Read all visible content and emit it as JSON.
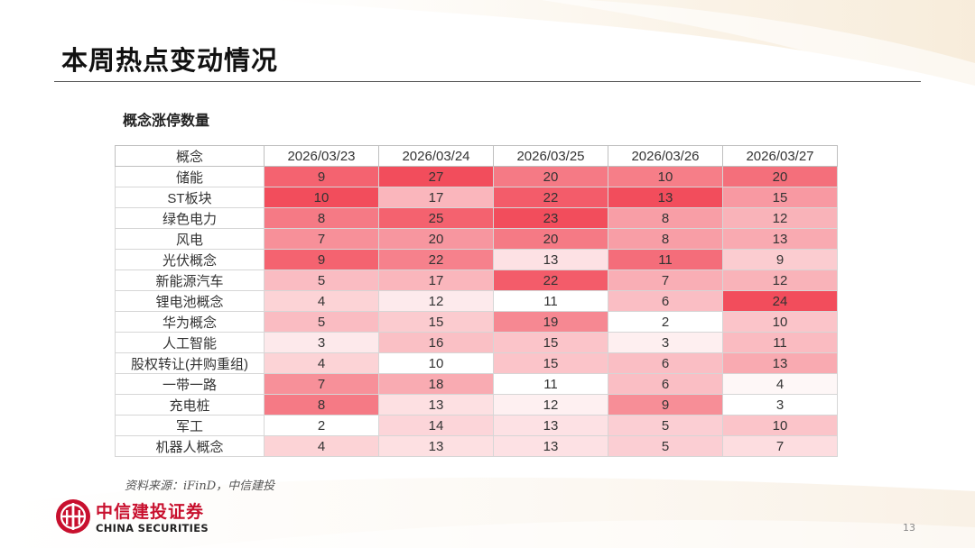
{
  "slide_title": "本周热点变动情况",
  "section_title": "概念涨停数量",
  "table": {
    "header": [
      "概念",
      "2026/03/23",
      "2026/03/24",
      "2026/03/25",
      "2026/03/26",
      "2026/03/27"
    ],
    "rows": [
      {
        "concept": "储能",
        "values": [
          9,
          27,
          20,
          10,
          20
        ]
      },
      {
        "concept": "ST板块",
        "values": [
          10,
          17,
          22,
          13,
          15
        ]
      },
      {
        "concept": "绿色电力",
        "values": [
          8,
          25,
          23,
          8,
          12
        ]
      },
      {
        "concept": "风电",
        "values": [
          7,
          20,
          20,
          8,
          13
        ]
      },
      {
        "concept": "光伏概念",
        "values": [
          9,
          22,
          13,
          11,
          9
        ]
      },
      {
        "concept": "新能源汽车",
        "values": [
          5,
          17,
          22,
          7,
          12
        ]
      },
      {
        "concept": "锂电池概念",
        "values": [
          4,
          12,
          11,
          6,
          24
        ]
      },
      {
        "concept": "华为概念",
        "values": [
          5,
          15,
          19,
          2,
          10
        ]
      },
      {
        "concept": "人工智能",
        "values": [
          3,
          16,
          15,
          3,
          11
        ]
      },
      {
        "concept": "股权转让(并购重组)",
        "values": [
          4,
          10,
          15,
          6,
          13
        ]
      },
      {
        "concept": "一带一路",
        "values": [
          7,
          18,
          11,
          6,
          4
        ]
      },
      {
        "concept": "充电桩",
        "values": [
          8,
          13,
          12,
          9,
          3
        ]
      },
      {
        "concept": "军工",
        "values": [
          2,
          14,
          13,
          5,
          10
        ]
      },
      {
        "concept": "机器人概念",
        "values": [
          4,
          13,
          13,
          5,
          7
        ]
      }
    ]
  },
  "source_note": "资料来源：iFinD，中信建投",
  "logo": {
    "cn": "中信建投证券",
    "en": "CHINA SECURITIES",
    "icon": "citic-logo-icon"
  },
  "page_number": "13",
  "colors": {
    "heat_high": "#f24d5c",
    "heat_low": "#ffffff",
    "brand_red": "#c8102e"
  }
}
